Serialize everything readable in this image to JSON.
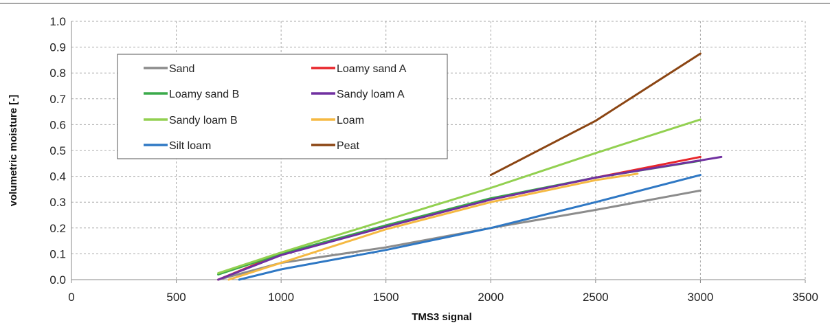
{
  "chart_data": {
    "type": "line",
    "title": "",
    "xlabel": "TMS3 signal",
    "ylabel": "volumetric moisture [-]",
    "xlim": [
      0,
      3500
    ],
    "ylim": [
      0.0,
      1.0
    ],
    "x_ticks": [
      "0",
      "500",
      "1000",
      "1500",
      "2000",
      "2500",
      "3000",
      "3500"
    ],
    "y_ticks": [
      "0.0",
      "0.1",
      "0.2",
      "0.3",
      "0.4",
      "0.5",
      "0.6",
      "0.7",
      "0.8",
      "0.9",
      "1.0"
    ],
    "grid": true,
    "legend_position": "top-left",
    "series": [
      {
        "name": "Sand",
        "color": "#8c8c8c",
        "x": [
          700,
          1000,
          1500,
          2000,
          2500,
          3000
        ],
        "y": [
          0.0,
          0.065,
          0.125,
          0.2,
          0.27,
          0.345
        ]
      },
      {
        "name": "Loamy sand A",
        "color": "#e8262b",
        "x": [
          700,
          1000,
          1500,
          2000,
          2500,
          3000
        ],
        "y": [
          0.0,
          0.1,
          0.205,
          0.31,
          0.395,
          0.475
        ]
      },
      {
        "name": "Loamy sand B",
        "color": "#3aaa4a",
        "x": [
          700,
          1000,
          1500,
          2000,
          2500,
          3000
        ],
        "y": [
          0.02,
          0.1,
          0.21,
          0.315,
          0.395,
          0.46
        ]
      },
      {
        "name": "Sandy loam A",
        "color": "#7030a0",
        "x": [
          700,
          1000,
          1500,
          2000,
          2500,
          3100
        ],
        "y": [
          0.0,
          0.095,
          0.205,
          0.31,
          0.395,
          0.475
        ]
      },
      {
        "name": "Sandy loam B",
        "color": "#92d050",
        "x": [
          700,
          1000,
          1500,
          2000,
          2500,
          3000
        ],
        "y": [
          0.025,
          0.105,
          0.23,
          0.355,
          0.49,
          0.62
        ]
      },
      {
        "name": "Loam",
        "color": "#f5b942",
        "x": [
          750,
          1000,
          1500,
          2000,
          2500,
          2700
        ],
        "y": [
          0.0,
          0.065,
          0.195,
          0.3,
          0.385,
          0.41
        ]
      },
      {
        "name": "Silt loam",
        "color": "#2f78c4",
        "x": [
          800,
          1000,
          1500,
          2000,
          2500,
          3000
        ],
        "y": [
          0.0,
          0.04,
          0.115,
          0.2,
          0.3,
          0.405
        ]
      },
      {
        "name": "Peat",
        "color": "#8b4513",
        "x": [
          2000,
          2500,
          3000
        ],
        "y": [
          0.405,
          0.615,
          0.875
        ]
      }
    ],
    "legend_layout": [
      [
        "Sand",
        "Loamy sand A"
      ],
      [
        "Loamy sand B",
        "Sandy loam A"
      ],
      [
        "Sandy loam B",
        "Loam"
      ],
      [
        "Silt loam",
        "Peat"
      ]
    ]
  }
}
